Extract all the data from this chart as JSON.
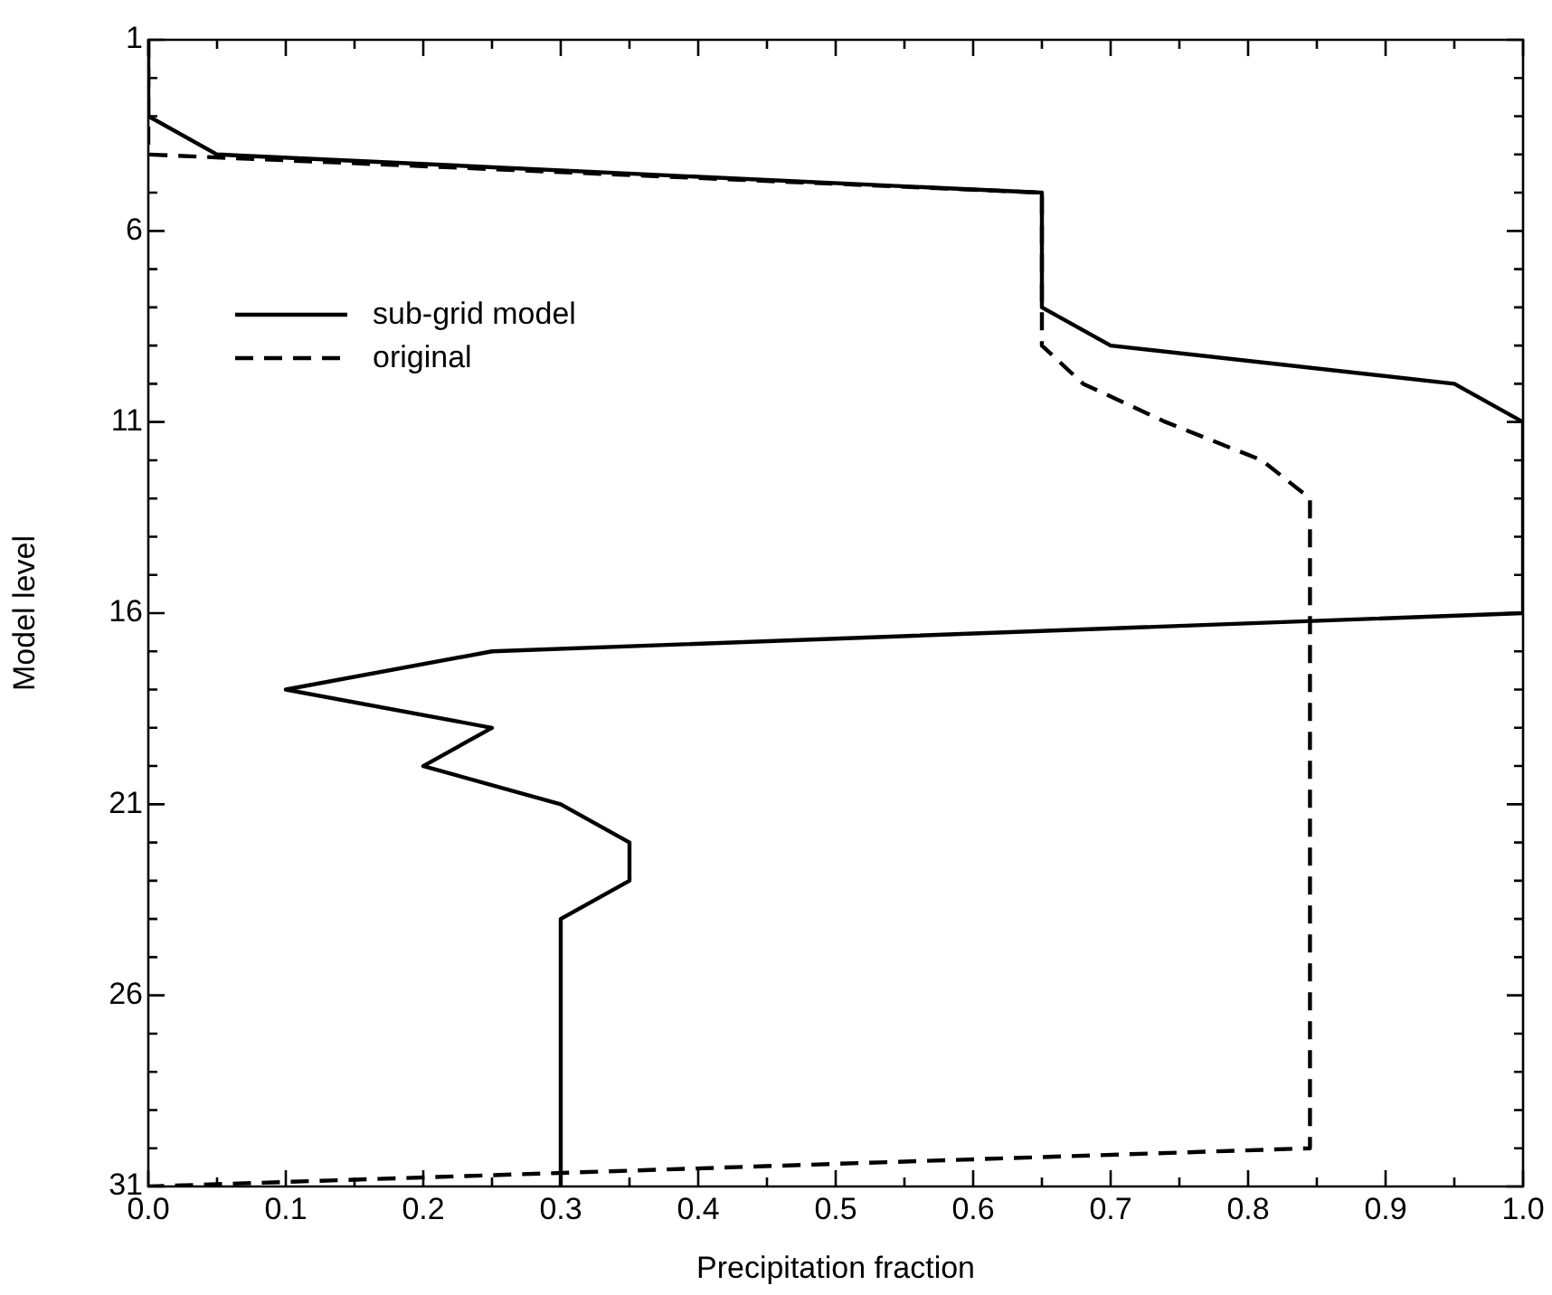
{
  "chart_data": {
    "type": "line",
    "xlabel": "Precipitation fraction",
    "ylabel": "Model level",
    "xlim": [
      0,
      1
    ],
    "ylim": [
      31,
      1
    ],
    "xticks": [
      {
        "value": 0,
        "label": "0.0"
      },
      {
        "value": 0.05,
        "label": null
      },
      {
        "value": 0.1,
        "label": "0.1"
      },
      {
        "value": 0.15,
        "label": null
      },
      {
        "value": 0.2,
        "label": "0.2"
      },
      {
        "value": 0.25,
        "label": null
      },
      {
        "value": 0.3,
        "label": "0.3"
      },
      {
        "value": 0.35,
        "label": null
      },
      {
        "value": 0.4,
        "label": "0.4"
      },
      {
        "value": 0.45,
        "label": null
      },
      {
        "value": 0.5,
        "label": "0.5"
      },
      {
        "value": 0.55,
        "label": null
      },
      {
        "value": 0.6,
        "label": "0.6"
      },
      {
        "value": 0.65,
        "label": null
      },
      {
        "value": 0.7,
        "label": "0.7"
      },
      {
        "value": 0.75,
        "label": null
      },
      {
        "value": 0.8,
        "label": "0.8"
      },
      {
        "value": 0.85,
        "label": null
      },
      {
        "value": 0.9,
        "label": "0.9"
      },
      {
        "value": 0.95,
        "label": null
      },
      {
        "value": 1,
        "label": "1.0"
      }
    ],
    "yticks": [
      1,
      {
        "value": 2,
        "label": null
      },
      {
        "value": 3,
        "label": null
      },
      {
        "value": 4,
        "label": null
      },
      {
        "value": 5,
        "label": null
      },
      6,
      {
        "value": 7,
        "label": null
      },
      {
        "value": 8,
        "label": null
      },
      {
        "value": 9,
        "label": null
      },
      {
        "value": 10,
        "label": null
      },
      11,
      {
        "value": 12,
        "label": null
      },
      {
        "value": 13,
        "label": null
      },
      {
        "value": 14,
        "label": null
      },
      {
        "value": 15,
        "label": null
      },
      16,
      {
        "value": 17,
        "label": null
      },
      {
        "value": 18,
        "label": null
      },
      {
        "value": 19,
        "label": null
      },
      {
        "value": 20,
        "label": null
      },
      21,
      {
        "value": 22,
        "label": null
      },
      {
        "value": 23,
        "label": null
      },
      {
        "value": 24,
        "label": null
      },
      {
        "value": 25,
        "label": null
      },
      26,
      {
        "value": 27,
        "label": null
      },
      {
        "value": 28,
        "label": null
      },
      {
        "value": 29,
        "label": null
      },
      {
        "value": 30,
        "label": null
      },
      31
    ],
    "grid": false,
    "legend": "top left",
    "marker": "none",
    "series": [
      {
        "name": "sub-grid model",
        "color": "#000000",
        "line_style": "solid",
        "x": [
          0,
          0,
          0.05,
          0.65,
          0.65,
          0.7,
          0.95,
          1,
          1,
          0.25,
          0.1,
          0.25,
          0.2,
          0.3,
          0.35,
          0.35,
          0.3,
          0.3
        ],
        "values": [
          1,
          3,
          4,
          5,
          8,
          9,
          10,
          11,
          16,
          17,
          18,
          19,
          20,
          21,
          22,
          23,
          24,
          31
        ]
      },
      {
        "name": "original",
        "color": "#000000",
        "line_style": "dashed",
        "x": [
          0,
          0,
          0,
          0.65,
          0.65,
          0.68,
          0.74,
          0.81,
          0.845,
          0.845,
          0
        ],
        "values": [
          1,
          3,
          4,
          5,
          9,
          10,
          11,
          12,
          13,
          30,
          31
        ]
      }
    ]
  }
}
